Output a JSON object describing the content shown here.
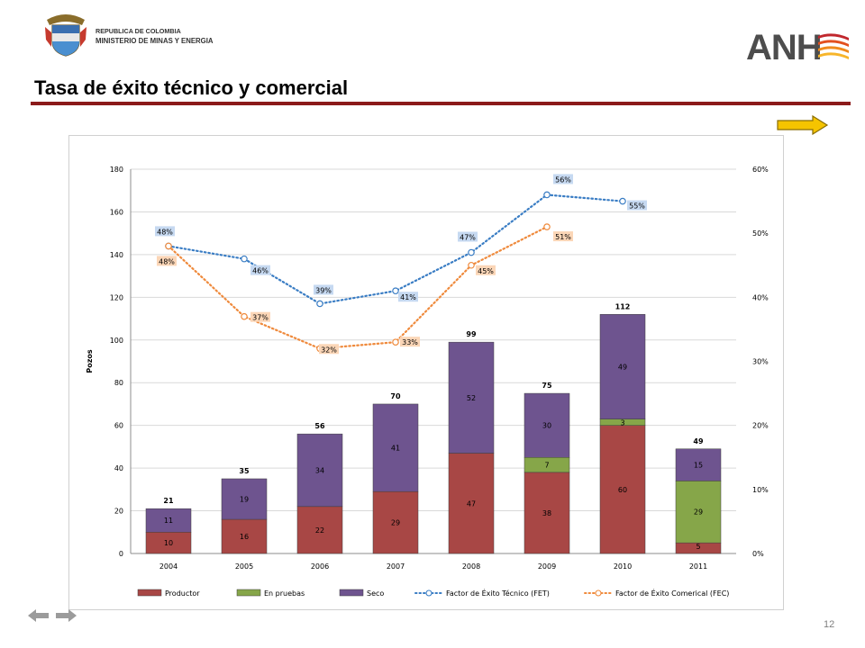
{
  "header": {
    "gov_line1": "REPUBLICA DE COLOMBIA",
    "gov_line2": "MINISTERIO DE MINAS Y ENERGIA",
    "anh_logo": "ANH"
  },
  "title": "Tasa de éxito técnico y comercial",
  "page_number": "12",
  "colors": {
    "productor": "#a84745",
    "en_pruebas": "#86a649",
    "seco": "#6e548f",
    "fet": "#3a7dc4",
    "fec": "#ef8a3c",
    "fet_label_bg": "#c6d9f1",
    "fec_label_bg": "#fbd6b7",
    "title_rule": "#8b1a1a"
  },
  "chart_data": {
    "type": "bar",
    "stacked": true,
    "categories": [
      "2004",
      "2005",
      "2006",
      "2007",
      "2008",
      "2009",
      "2010",
      "2011"
    ],
    "series": [
      {
        "name": "Productor",
        "values": [
          10,
          16,
          22,
          29,
          47,
          38,
          60,
          5
        ]
      },
      {
        "name": "En pruebas",
        "values": [
          0,
          0,
          0,
          0,
          0,
          7,
          3,
          29
        ]
      },
      {
        "name": "Seco",
        "values": [
          11,
          19,
          34,
          41,
          52,
          30,
          49,
          15
        ]
      }
    ],
    "totals": [
      21,
      35,
      56,
      70,
      99,
      75,
      112,
      49
    ],
    "lines": [
      {
        "name": "Factor de Éxito Técnico (FET)",
        "axis": "right",
        "style": "dotted",
        "values": [
          48,
          46,
          39,
          41,
          47,
          56,
          55,
          null
        ],
        "labels": [
          "48%",
          "46%",
          "39%",
          "41%",
          "47%",
          "56%",
          "55%",
          null
        ]
      },
      {
        "name": "Factor de Éxito Comerical (FEC)",
        "axis": "right",
        "style": "dotted",
        "values": [
          48,
          37,
          32,
          33,
          45,
          51,
          null,
          null
        ],
        "labels": [
          "48%",
          "37%",
          "32%",
          "33%",
          "45%",
          "51%",
          null,
          null
        ]
      }
    ],
    "ylabel": "Pozos",
    "ylim": [
      0,
      180
    ],
    "yticks": [
      "0",
      "20",
      "40",
      "60",
      "80",
      "100",
      "120",
      "140",
      "160",
      "180"
    ],
    "y2lim": [
      0,
      60
    ],
    "y2ticks": [
      "0%",
      "10%",
      "20%",
      "30%",
      "40%",
      "50%",
      "60%"
    ],
    "grid": true,
    "legend": "bottom"
  }
}
